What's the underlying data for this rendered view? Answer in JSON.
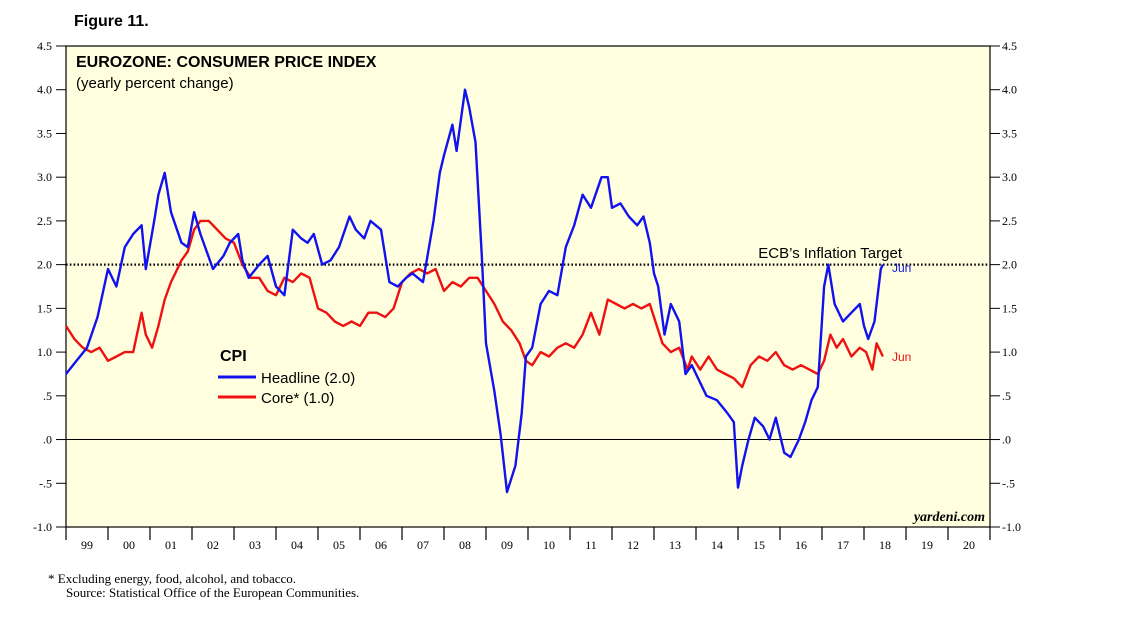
{
  "figure_label": "Figure 11.",
  "colors": {
    "plot_bg": "#ffffe0",
    "headline": "#1212ee",
    "core": "#ee1111",
    "axis": "#000000"
  },
  "chart_data": {
    "type": "line",
    "title": "EUROZONE: CONSUMER PRICE INDEX",
    "subtitle": "(yearly percent change)",
    "legend_title": "CPI",
    "legend_placement": "middle-left",
    "ylim": [
      -1.0,
      4.5
    ],
    "xlim": [
      1999.0,
      2021.0
    ],
    "y_ticks": [
      -1.0,
      -0.5,
      0.0,
      0.5,
      1.0,
      1.5,
      2.0,
      2.5,
      3.0,
      3.5,
      4.0,
      4.5
    ],
    "y_tick_labels": [
      "-1.0",
      "-.5",
      ".0",
      ".5",
      "1.0",
      "1.5",
      "2.0",
      "2.5",
      "3.0",
      "3.5",
      "4.0",
      "4.5"
    ],
    "x_tick_labels": [
      "99",
      "00",
      "01",
      "02",
      "03",
      "04",
      "05",
      "06",
      "07",
      "08",
      "09",
      "10",
      "11",
      "12",
      "13",
      "14",
      "15",
      "16",
      "17",
      "18",
      "19",
      "20"
    ],
    "reference_line": {
      "label": "ECB’s Inflation Target",
      "value": 2.0
    },
    "series": [
      {
        "name": "Headline (2.0)",
        "end_label": "Jun",
        "points": [
          [
            1999.0,
            0.75
          ],
          [
            1999.25,
            0.9
          ],
          [
            1999.5,
            1.05
          ],
          [
            1999.75,
            1.4
          ],
          [
            2000.0,
            1.95
          ],
          [
            2000.2,
            1.75
          ],
          [
            2000.4,
            2.2
          ],
          [
            2000.6,
            2.35
          ],
          [
            2000.8,
            2.45
          ],
          [
            2000.9,
            1.95
          ],
          [
            2001.1,
            2.5
          ],
          [
            2001.2,
            2.8
          ],
          [
            2001.35,
            3.05
          ],
          [
            2001.5,
            2.6
          ],
          [
            2001.75,
            2.25
          ],
          [
            2001.9,
            2.2
          ],
          [
            2002.05,
            2.6
          ],
          [
            2002.2,
            2.35
          ],
          [
            2002.5,
            1.95
          ],
          [
            2002.75,
            2.1
          ],
          [
            2002.9,
            2.25
          ],
          [
            2003.1,
            2.35
          ],
          [
            2003.2,
            2.05
          ],
          [
            2003.35,
            1.85
          ],
          [
            2003.6,
            2.0
          ],
          [
            2003.8,
            2.1
          ],
          [
            2004.0,
            1.75
          ],
          [
            2004.2,
            1.65
          ],
          [
            2004.4,
            2.4
          ],
          [
            2004.6,
            2.3
          ],
          [
            2004.75,
            2.25
          ],
          [
            2004.9,
            2.35
          ],
          [
            2005.1,
            2.0
          ],
          [
            2005.3,
            2.05
          ],
          [
            2005.5,
            2.2
          ],
          [
            2005.75,
            2.55
          ],
          [
            2005.9,
            2.4
          ],
          [
            2006.1,
            2.3
          ],
          [
            2006.25,
            2.5
          ],
          [
            2006.5,
            2.4
          ],
          [
            2006.7,
            1.8
          ],
          [
            2006.9,
            1.75
          ],
          [
            2007.1,
            1.85
          ],
          [
            2007.25,
            1.9
          ],
          [
            2007.5,
            1.8
          ],
          [
            2007.75,
            2.5
          ],
          [
            2007.9,
            3.05
          ],
          [
            2008.0,
            3.25
          ],
          [
            2008.2,
            3.6
          ],
          [
            2008.3,
            3.3
          ],
          [
            2008.5,
            4.0
          ],
          [
            2008.6,
            3.8
          ],
          [
            2008.75,
            3.4
          ],
          [
            2008.9,
            2.1
          ],
          [
            2009.0,
            1.1
          ],
          [
            2009.2,
            0.55
          ],
          [
            2009.35,
            0.05
          ],
          [
            2009.5,
            -0.6
          ],
          [
            2009.7,
            -0.3
          ],
          [
            2009.85,
            0.3
          ],
          [
            2009.95,
            0.95
          ],
          [
            2010.1,
            1.05
          ],
          [
            2010.3,
            1.55
          ],
          [
            2010.5,
            1.7
          ],
          [
            2010.7,
            1.65
          ],
          [
            2010.9,
            2.2
          ],
          [
            2011.1,
            2.45
          ],
          [
            2011.3,
            2.8
          ],
          [
            2011.5,
            2.65
          ],
          [
            2011.75,
            3.0
          ],
          [
            2011.9,
            3.0
          ],
          [
            2012.0,
            2.65
          ],
          [
            2012.2,
            2.7
          ],
          [
            2012.4,
            2.55
          ],
          [
            2012.6,
            2.45
          ],
          [
            2012.75,
            2.55
          ],
          [
            2012.9,
            2.25
          ],
          [
            2013.0,
            1.9
          ],
          [
            2013.1,
            1.75
          ],
          [
            2013.25,
            1.2
          ],
          [
            2013.4,
            1.55
          ],
          [
            2013.6,
            1.35
          ],
          [
            2013.75,
            0.75
          ],
          [
            2013.9,
            0.85
          ],
          [
            2014.1,
            0.65
          ],
          [
            2014.25,
            0.5
          ],
          [
            2014.5,
            0.45
          ],
          [
            2014.75,
            0.3
          ],
          [
            2014.9,
            0.2
          ],
          [
            2015.0,
            -0.55
          ],
          [
            2015.1,
            -0.3
          ],
          [
            2015.25,
            0.0
          ],
          [
            2015.4,
            0.25
          ],
          [
            2015.6,
            0.15
          ],
          [
            2015.75,
            0.0
          ],
          [
            2015.9,
            0.25
          ],
          [
            2016.1,
            -0.15
          ],
          [
            2016.25,
            -0.2
          ],
          [
            2016.45,
            0.0
          ],
          [
            2016.6,
            0.2
          ],
          [
            2016.75,
            0.45
          ],
          [
            2016.9,
            0.6
          ],
          [
            2017.05,
            1.75
          ],
          [
            2017.15,
            2.0
          ],
          [
            2017.3,
            1.55
          ],
          [
            2017.5,
            1.35
          ],
          [
            2017.7,
            1.45
          ],
          [
            2017.9,
            1.55
          ],
          [
            2018.0,
            1.3
          ],
          [
            2018.1,
            1.15
          ],
          [
            2018.25,
            1.35
          ],
          [
            2018.4,
            1.95
          ],
          [
            2018.45,
            2.0
          ]
        ]
      },
      {
        "name": "Core* (1.0)",
        "end_label": "Jun",
        "points": [
          [
            1999.0,
            1.3
          ],
          [
            1999.2,
            1.15
          ],
          [
            1999.4,
            1.05
          ],
          [
            1999.6,
            1.0
          ],
          [
            1999.8,
            1.05
          ],
          [
            2000.0,
            0.9
          ],
          [
            2000.2,
            0.95
          ],
          [
            2000.4,
            1.0
          ],
          [
            2000.6,
            1.0
          ],
          [
            2000.8,
            1.45
          ],
          [
            2000.9,
            1.2
          ],
          [
            2001.05,
            1.05
          ],
          [
            2001.2,
            1.3
          ],
          [
            2001.35,
            1.6
          ],
          [
            2001.5,
            1.8
          ],
          [
            2001.75,
            2.05
          ],
          [
            2001.9,
            2.15
          ],
          [
            2002.05,
            2.4
          ],
          [
            2002.2,
            2.5
          ],
          [
            2002.4,
            2.5
          ],
          [
            2002.6,
            2.4
          ],
          [
            2002.8,
            2.3
          ],
          [
            2003.0,
            2.25
          ],
          [
            2003.2,
            2.0
          ],
          [
            2003.4,
            1.85
          ],
          [
            2003.6,
            1.85
          ],
          [
            2003.8,
            1.7
          ],
          [
            2004.0,
            1.65
          ],
          [
            2004.2,
            1.85
          ],
          [
            2004.4,
            1.8
          ],
          [
            2004.6,
            1.9
          ],
          [
            2004.8,
            1.85
          ],
          [
            2005.0,
            1.5
          ],
          [
            2005.2,
            1.45
          ],
          [
            2005.4,
            1.35
          ],
          [
            2005.6,
            1.3
          ],
          [
            2005.8,
            1.35
          ],
          [
            2006.0,
            1.3
          ],
          [
            2006.2,
            1.45
          ],
          [
            2006.4,
            1.45
          ],
          [
            2006.6,
            1.4
          ],
          [
            2006.8,
            1.5
          ],
          [
            2007.0,
            1.8
          ],
          [
            2007.2,
            1.9
          ],
          [
            2007.4,
            1.95
          ],
          [
            2007.6,
            1.9
          ],
          [
            2007.8,
            1.95
          ],
          [
            2008.0,
            1.7
          ],
          [
            2008.2,
            1.8
          ],
          [
            2008.4,
            1.75
          ],
          [
            2008.6,
            1.85
          ],
          [
            2008.8,
            1.85
          ],
          [
            2009.0,
            1.7
          ],
          [
            2009.2,
            1.55
          ],
          [
            2009.4,
            1.35
          ],
          [
            2009.6,
            1.25
          ],
          [
            2009.8,
            1.1
          ],
          [
            2009.95,
            0.9
          ],
          [
            2010.1,
            0.85
          ],
          [
            2010.3,
            1.0
          ],
          [
            2010.5,
            0.95
          ],
          [
            2010.7,
            1.05
          ],
          [
            2010.9,
            1.1
          ],
          [
            2011.1,
            1.05
          ],
          [
            2011.3,
            1.2
          ],
          [
            2011.5,
            1.45
          ],
          [
            2011.7,
            1.2
          ],
          [
            2011.9,
            1.6
          ],
          [
            2012.1,
            1.55
          ],
          [
            2012.3,
            1.5
          ],
          [
            2012.5,
            1.55
          ],
          [
            2012.7,
            1.5
          ],
          [
            2012.9,
            1.55
          ],
          [
            2013.0,
            1.4
          ],
          [
            2013.2,
            1.1
          ],
          [
            2013.4,
            1.0
          ],
          [
            2013.6,
            1.05
          ],
          [
            2013.8,
            0.8
          ],
          [
            2013.9,
            0.95
          ],
          [
            2014.1,
            0.8
          ],
          [
            2014.3,
            0.95
          ],
          [
            2014.5,
            0.8
          ],
          [
            2014.7,
            0.75
          ],
          [
            2014.9,
            0.7
          ],
          [
            2015.1,
            0.6
          ],
          [
            2015.3,
            0.85
          ],
          [
            2015.5,
            0.95
          ],
          [
            2015.7,
            0.9
          ],
          [
            2015.9,
            1.0
          ],
          [
            2016.1,
            0.85
          ],
          [
            2016.3,
            0.8
          ],
          [
            2016.5,
            0.85
          ],
          [
            2016.7,
            0.8
          ],
          [
            2016.9,
            0.75
          ],
          [
            2017.05,
            0.9
          ],
          [
            2017.2,
            1.2
          ],
          [
            2017.35,
            1.05
          ],
          [
            2017.5,
            1.15
          ],
          [
            2017.7,
            0.95
          ],
          [
            2017.9,
            1.05
          ],
          [
            2018.05,
            1.0
          ],
          [
            2018.2,
            0.8
          ],
          [
            2018.3,
            1.1
          ],
          [
            2018.45,
            0.95
          ]
        ]
      }
    ],
    "attribution": "yardeni.com"
  },
  "footnote": {
    "line1": "*  Excluding energy, food, alcohol, and tobacco.",
    "line2": "Source: Statistical Office of the European Communities."
  }
}
